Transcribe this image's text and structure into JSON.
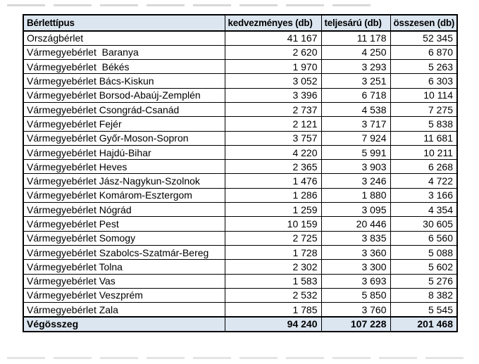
{
  "style": {
    "header_bg": "#dce6f1",
    "total_bg": "#dce6f1",
    "border_color": "#000000",
    "text_color": "#000000"
  },
  "chart_data": {
    "type": "table",
    "columns": [
      "Bérlettípus",
      "kedvezményes (db)",
      "teljesárú (db)",
      "összesen (db)"
    ],
    "rows": [
      [
        "Országbérlet",
        "41 167",
        "11 178",
        "52 345"
      ],
      [
        "Vármegyebérlet  Baranya",
        "2 620",
        "4 250",
        "6 870"
      ],
      [
        "Vármegyebérlet  Békés",
        "1 970",
        "3 293",
        "5 263"
      ],
      [
        "Vármegyebérlet Bács-Kiskun",
        "3 052",
        "3 251",
        "6 303"
      ],
      [
        "Vármegyebérlet Borsod-Abaúj-Zemplén",
        "3 396",
        "6 718",
        "10 114"
      ],
      [
        "Vármegyebérlet Csongrád-Csanád",
        "2 737",
        "4 538",
        "7 275"
      ],
      [
        "Vármegyebérlet Fejér",
        "2 121",
        "3 717",
        "5 838"
      ],
      [
        "Vármegyebérlet Győr-Moson-Sopron",
        "3 757",
        "7 924",
        "11 681"
      ],
      [
        "Vármegyebérlet Hajdú-Bihar",
        "4 220",
        "5 991",
        "10 211"
      ],
      [
        "Vármegyebérlet Heves",
        "2 365",
        "3 903",
        "6 268"
      ],
      [
        "Vármegyebérlet Jász-Nagykun-Szolnok",
        "1 476",
        "3 246",
        "4 722"
      ],
      [
        "Vármegyebérlet Komárom-Esztergom",
        "1 286",
        "1 880",
        "3 166"
      ],
      [
        "Vármegyebérlet Nógrád",
        "1 259",
        "3 095",
        "4 354"
      ],
      [
        "Vármegyebérlet Pest",
        "10 159",
        "20 446",
        "30 605"
      ],
      [
        "Vármegyebérlet Somogy",
        "2 725",
        "3 835",
        "6 560"
      ],
      [
        "Vármegyebérlet Szabolcs-Szatmár-Bereg",
        "1 728",
        "3 360",
        "5 088"
      ],
      [
        "Vármegyebérlet Tolna",
        "2 302",
        "3 300",
        "5 602"
      ],
      [
        "Vármegyebérlet Vas",
        "1 583",
        "3 693",
        "5 276"
      ],
      [
        "Vármegyebérlet Veszprém",
        "2 532",
        "5 850",
        "8 382"
      ],
      [
        "Vármegyebérlet Zala",
        "1 785",
        "3 760",
        "5 545"
      ]
    ],
    "total_row": [
      "Végösszeg",
      "94 240",
      "107 228",
      "201 468"
    ]
  }
}
